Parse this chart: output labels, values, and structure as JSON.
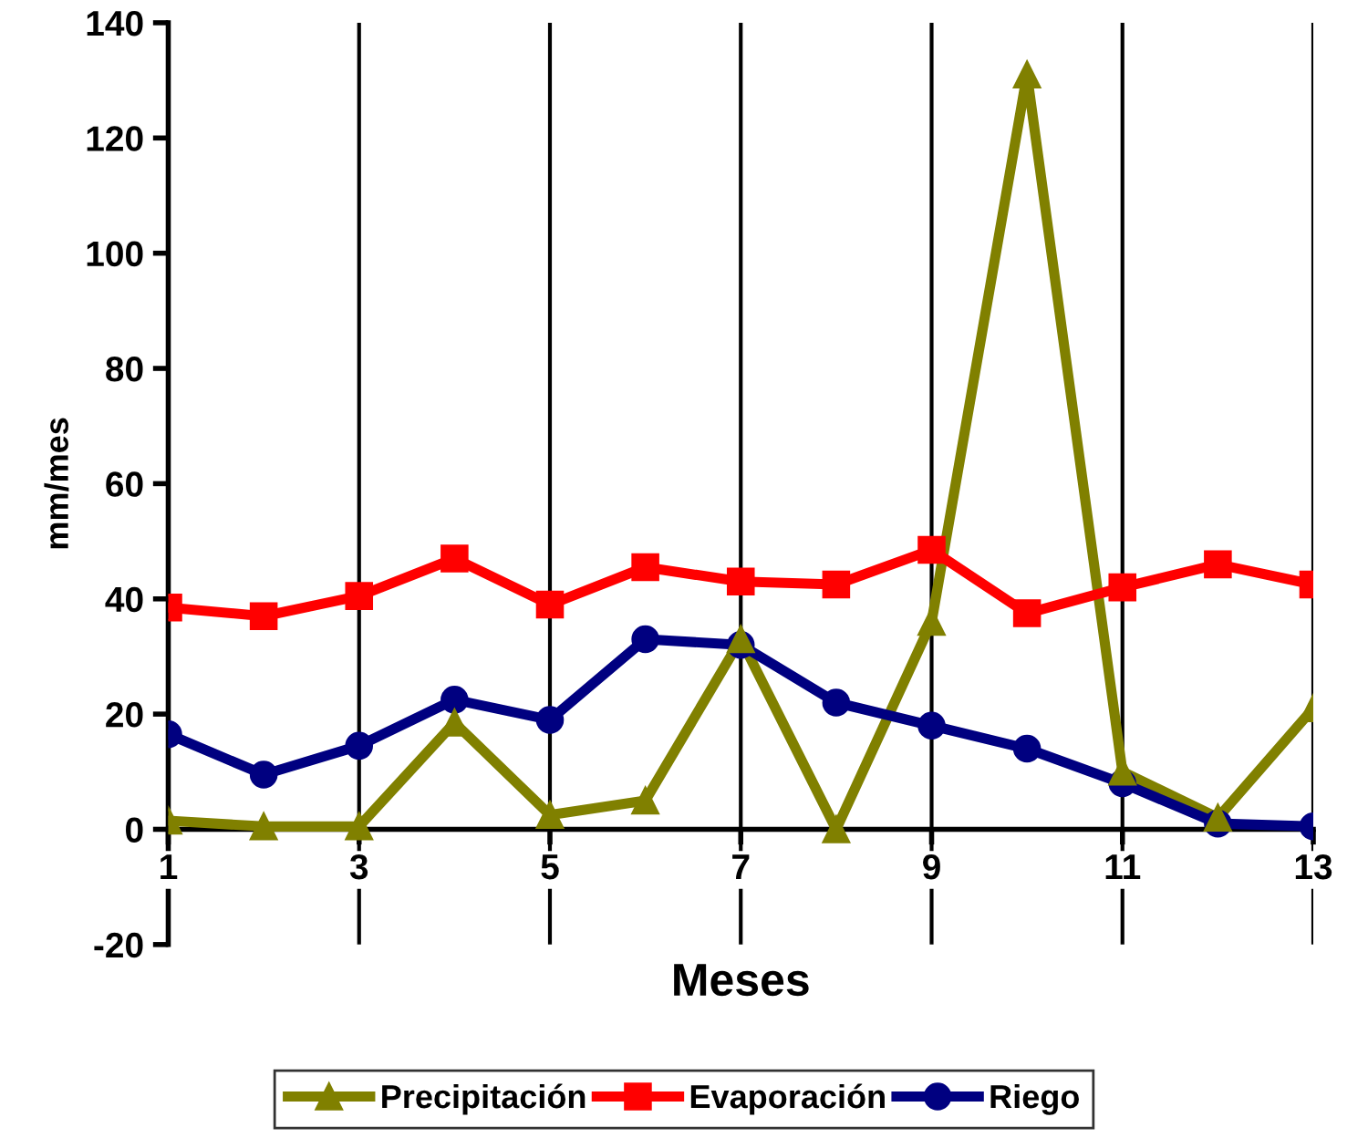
{
  "chart_data": {
    "type": "line",
    "xlabel": "Meses",
    "ylabel": "mm/mes",
    "x": [
      1,
      2,
      3,
      4,
      5,
      6,
      7,
      8,
      9,
      10,
      11,
      12,
      13
    ],
    "xlim": [
      1,
      13
    ],
    "xticks": [
      1,
      3,
      5,
      7,
      9,
      11,
      13
    ],
    "ylim": [
      -20,
      140
    ],
    "yticks": [
      -20,
      0,
      20,
      40,
      60,
      80,
      100,
      120,
      140
    ],
    "grid": "x",
    "legend": "bottom",
    "line_style": "solid",
    "series": [
      {
        "name": "Precipitación",
        "color": "#808000",
        "marker": "triangle",
        "values": [
          1.5,
          0.5,
          0.5,
          18.5,
          2.5,
          5,
          33,
          0,
          36,
          131,
          10,
          2,
          21
        ]
      },
      {
        "name": "Evaporación",
        "color": "#ff0000",
        "marker": "square",
        "values": [
          38.5,
          37,
          40.5,
          47,
          39,
          45.5,
          43,
          42.5,
          48.5,
          37.5,
          42,
          46,
          42.5
        ]
      },
      {
        "name": "Riego",
        "color": "#000080",
        "marker": "circle",
        "values": [
          16.5,
          9.5,
          14.5,
          22.5,
          19,
          33,
          32,
          22,
          18,
          14,
          8,
          1,
          0.5
        ]
      }
    ]
  }
}
